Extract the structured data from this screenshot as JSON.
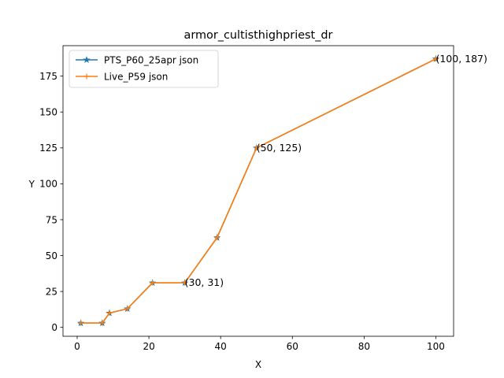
{
  "chart_data": {
    "type": "line",
    "title": "armor_cultisthighpriest_dr",
    "xlabel": "X",
    "ylabel": "Y",
    "xlim": [
      -3.95,
      104.95
    ],
    "ylim": [
      -6.2,
      196.2
    ],
    "xticks": [
      0,
      20,
      40,
      60,
      80,
      100
    ],
    "yticks": [
      0,
      25,
      50,
      75,
      100,
      125,
      150,
      175
    ],
    "grid": false,
    "legend_position": "upper-left",
    "series": [
      {
        "name": "PTS_P60_25apr json",
        "color": "#1f77b4",
        "marker": "star",
        "x": [
          1,
          7,
          9,
          14,
          21,
          30,
          39,
          50,
          100
        ],
        "y": [
          3,
          3,
          10,
          13,
          31,
          31,
          62.5,
          125,
          187
        ]
      },
      {
        "name": "Live_P59 json",
        "color": "#ff7f0e",
        "marker": "plus",
        "x": [
          1,
          7,
          9,
          14,
          21,
          30,
          39,
          50,
          100
        ],
        "y": [
          3,
          3,
          10,
          13,
          31,
          31,
          62.5,
          125,
          187
        ]
      }
    ],
    "annotations": [
      {
        "text": "(30, 31)",
        "x": 30,
        "y": 31
      },
      {
        "text": "(50, 125)",
        "x": 50,
        "y": 125
      },
      {
        "text": "(100, 187)",
        "x": 100,
        "y": 187
      }
    ]
  }
}
